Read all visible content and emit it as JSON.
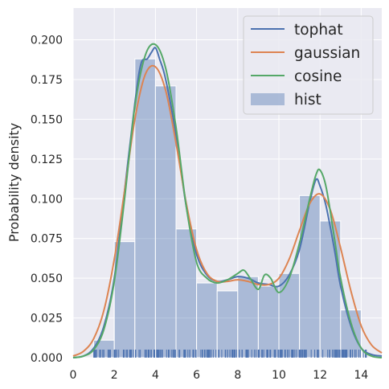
{
  "chart_data": {
    "type": "histogram+kde",
    "ylabel": "Probability density",
    "xlabel": "",
    "xlim": [
      0,
      15
    ],
    "ylim": [
      0,
      0.22
    ],
    "grid": true,
    "legend_position": "top-right",
    "x_ticks": [
      "0",
      "2",
      "4",
      "6",
      "8",
      "10",
      "12",
      "14"
    ],
    "x_tick_values": [
      0,
      2,
      4,
      6,
      8,
      10,
      12,
      14
    ],
    "y_ticks": [
      "0.000",
      "0.025",
      "0.050",
      "0.075",
      "0.100",
      "0.125",
      "0.150",
      "0.175",
      "0.200"
    ],
    "y_tick_values": [
      0,
      0.025,
      0.05,
      0.075,
      0.1,
      0.125,
      0.15,
      0.175,
      0.2
    ],
    "hist": {
      "name": "hist",
      "color": "#4c72b0",
      "bin_edges": [
        1.0,
        2.0,
        3.0,
        4.0,
        5.0,
        6.0,
        7.0,
        8.0,
        9.0,
        10.0,
        11.0,
        12.0,
        13.0,
        14.0
      ],
      "values": [
        0.011,
        0.073,
        0.188,
        0.171,
        0.081,
        0.047,
        0.042,
        0.051,
        0.045,
        0.053,
        0.102,
        0.086,
        0.03
      ]
    },
    "series": [
      {
        "name": "tophat",
        "color": "#4c72b0",
        "x": [
          0,
          0.5,
          1,
          1.5,
          2,
          2.5,
          3,
          3.3,
          3.6,
          3.8,
          4,
          4.2,
          4.5,
          5,
          5.5,
          6,
          6.5,
          7,
          7.5,
          8,
          8.5,
          9,
          9.5,
          10,
          10.5,
          11,
          11.5,
          11.8,
          12,
          12.3,
          12.7,
          13,
          13.5,
          14,
          14.5,
          15
        ],
        "y": [
          0,
          0.001,
          0.006,
          0.02,
          0.05,
          0.105,
          0.16,
          0.185,
          0.188,
          0.192,
          0.195,
          0.188,
          0.175,
          0.14,
          0.095,
          0.065,
          0.052,
          0.048,
          0.049,
          0.051,
          0.05,
          0.047,
          0.046,
          0.045,
          0.052,
          0.068,
          0.098,
          0.112,
          0.108,
          0.095,
          0.068,
          0.045,
          0.02,
          0.006,
          0.002,
          0.001
        ]
      },
      {
        "name": "gaussian",
        "color": "#dd8452",
        "x": [
          0,
          0.5,
          1,
          1.5,
          2,
          2.5,
          3,
          3.5,
          4,
          4.5,
          5,
          5.5,
          6,
          6.5,
          7,
          7.5,
          8,
          8.5,
          9,
          9.5,
          10,
          10.5,
          11,
          11.5,
          12,
          12.5,
          13,
          13.5,
          14,
          14.5,
          15
        ],
        "y": [
          0.001,
          0.004,
          0.012,
          0.03,
          0.062,
          0.105,
          0.15,
          0.178,
          0.183,
          0.168,
          0.135,
          0.097,
          0.068,
          0.053,
          0.048,
          0.048,
          0.049,
          0.048,
          0.046,
          0.046,
          0.05,
          0.062,
          0.08,
          0.097,
          0.103,
          0.093,
          0.069,
          0.042,
          0.02,
          0.008,
          0.003
        ]
      },
      {
        "name": "cosine",
        "color": "#55a868",
        "x": [
          0,
          0.5,
          1,
          1.5,
          2,
          2.5,
          3,
          3.5,
          4,
          4.5,
          5,
          5.5,
          6,
          6.5,
          7,
          7.5,
          8,
          8.3,
          8.6,
          9,
          9.3,
          9.6,
          10,
          10.5,
          11,
          11.5,
          11.8,
          12,
          12.3,
          12.7,
          13,
          13.5,
          14,
          14.5,
          15
        ],
        "y": [
          0,
          0.001,
          0.005,
          0.018,
          0.048,
          0.1,
          0.158,
          0.19,
          0.197,
          0.182,
          0.145,
          0.095,
          0.06,
          0.05,
          0.047,
          0.049,
          0.053,
          0.055,
          0.05,
          0.043,
          0.052,
          0.05,
          0.041,
          0.05,
          0.072,
          0.1,
          0.115,
          0.118,
          0.107,
          0.075,
          0.05,
          0.022,
          0.006,
          0.001,
          0
        ]
      }
    ],
    "legend": [
      "tophat",
      "gaussian",
      "cosine",
      "hist"
    ],
    "rug": {
      "color": "#4c72b0",
      "x_range": [
        1.0,
        14.3
      ]
    }
  }
}
